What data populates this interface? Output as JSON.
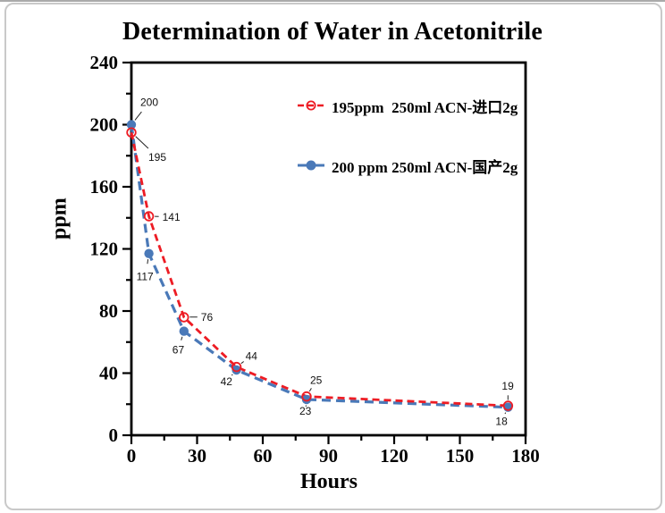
{
  "page": {
    "background": "#ffffff",
    "card_border_color": "#c9c9c9"
  },
  "chart": {
    "title": "Determination of Water in Acetonitrile",
    "xlabel": "Hours",
    "ylabel": "ppm"
  },
  "legend": {
    "position": "inside-top-center",
    "items": [
      {
        "label": "195ppm  250ml ACN-进口2g",
        "color": "#ed1c24",
        "marker": "open-circle",
        "line": "dashed"
      },
      {
        "label": "200 ppm 250ml ACN-国产2g",
        "color": "#4a79b8",
        "marker": "filled-circle",
        "line": "solid"
      }
    ]
  },
  "chart_data": {
    "type": "line",
    "title": "Determination of Water in Acetonitrile",
    "xlabel": "Hours",
    "ylabel": "ppm",
    "xlim": [
      0,
      180
    ],
    "ylim": [
      0,
      240
    ],
    "x_major_ticks": [
      0,
      30,
      60,
      90,
      120,
      150,
      180
    ],
    "x_minor_step": 15,
    "y_major_ticks": [
      0,
      40,
      80,
      120,
      160,
      200,
      240
    ],
    "y_minor_step": 20,
    "grid": false,
    "axis_color": "#000000",
    "annotation_color": "#222222",
    "series": [
      {
        "name": "195ppm  250ml ACN-进口2g",
        "color": "#ed1c24",
        "line_style": "dashed",
        "dash_pattern": [
          8,
          5
        ],
        "line_width": 2.8,
        "marker": "open-circle",
        "marker_radius": 4.8,
        "x": [
          0,
          8,
          24,
          48,
          80,
          172
        ],
        "values": [
          195,
          141,
          76,
          44,
          25,
          19
        ],
        "point_labels": [
          "195",
          "141",
          "76",
          "44",
          "25",
          "19"
        ],
        "label_offsets": [
          [
            19,
            32
          ],
          [
            15,
            5
          ],
          [
            19,
            4
          ],
          [
            10,
            -8
          ],
          [
            4,
            -14
          ],
          [
            -7,
            -18
          ]
        ]
      },
      {
        "name": "200 ppm 250ml ACN-国产2g",
        "color": "#4a79b8",
        "line_style": "dashed",
        "dash_pattern": [
          10,
          6
        ],
        "line_width": 3.2,
        "marker": "filled-circle",
        "marker_radius": 5.2,
        "x": [
          0,
          8,
          24,
          48,
          80,
          172
        ],
        "values": [
          200,
          117,
          67,
          42,
          23,
          18
        ],
        "point_labels": [
          "200",
          "117",
          "67",
          "42",
          "23",
          "18"
        ],
        "label_offsets": [
          [
            10,
            -21
          ],
          [
            -14,
            30
          ],
          [
            -13,
            25
          ],
          [
            -18,
            17
          ],
          [
            -8,
            17
          ],
          [
            -14,
            20
          ]
        ]
      }
    ]
  }
}
